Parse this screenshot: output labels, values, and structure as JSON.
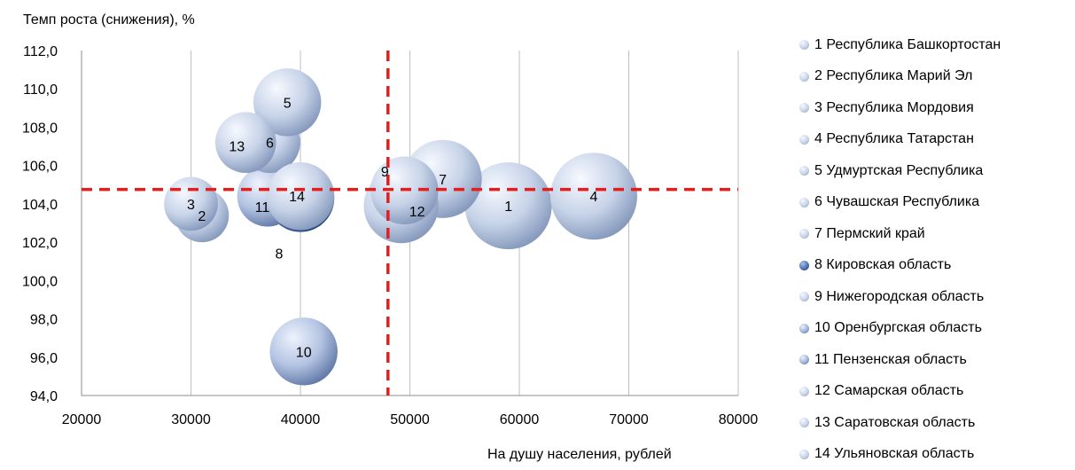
{
  "chart_data": {
    "type": "bubble",
    "ylabel": "Темп роста (снижения), %",
    "xlabel": "На душу населения, рублей",
    "xlim": [
      20000,
      80000
    ],
    "ylim": [
      94.0,
      112.0
    ],
    "x_ticks": [
      "20000",
      "30000",
      "40000",
      "50000",
      "60000",
      "70000",
      "80000"
    ],
    "y_ticks": [
      "94,0",
      "96,0",
      "98,0",
      "100,0",
      "102,0",
      "104,0",
      "106,0",
      "108,0",
      "110,0",
      "112,0"
    ],
    "grid": "vertical",
    "legend_position": "right",
    "reference_lines": {
      "x": 48000,
      "y": 104.75,
      "color": "#e21f1f",
      "style": "dashed"
    },
    "series": [
      {
        "label": "1",
        "name": "1 Республика Башкортостан",
        "x": 59000,
        "y": 103.9,
        "size": 1.0,
        "color": "light"
      },
      {
        "label": "2",
        "name": "2 Республика Марий Эл",
        "x": 31000,
        "y": 103.4,
        "size": 0.62,
        "color": "light"
      },
      {
        "label": "3",
        "name": "3 Республика Мордовия",
        "x": 30000,
        "y": 104.0,
        "size": 0.62,
        "color": "light"
      },
      {
        "label": "4",
        "name": "4 Республика Татарстан",
        "x": 66800,
        "y": 104.4,
        "size": 1.0,
        "color": "light"
      },
      {
        "label": "5",
        "name": "5 Удмуртская Республика",
        "x": 38800,
        "y": 109.3,
        "size": 0.78,
        "color": "light"
      },
      {
        "label": "6",
        "name": "6 Чувашская Республика",
        "x": 37200,
        "y": 107.2,
        "size": 0.7,
        "color": "light"
      },
      {
        "label": "7",
        "name": "7 Пермский край",
        "x": 53000,
        "y": 105.3,
        "size": 0.9,
        "color": "light"
      },
      {
        "label": "8",
        "name": "8 Кировская область",
        "x": 40000,
        "y": 104.3,
        "size": 0.78,
        "color": "dark",
        "label_offset": [
          -24,
          62
        ]
      },
      {
        "label": "9",
        "name": "9 Нижегородская область",
        "x": 49500,
        "y": 104.7,
        "size": 0.78,
        "color": "light",
        "label_offset": [
          -22,
          -22
        ]
      },
      {
        "label": "10",
        "name": "10 Оренбургская область",
        "x": 40300,
        "y": 96.3,
        "size": 0.78,
        "color": "medium"
      },
      {
        "label": "11",
        "name": "11 Пензенская область",
        "x": 37000,
        "y": 104.4,
        "size": 0.7,
        "color": "medium",
        "label_offset": [
          -6,
          12
        ]
      },
      {
        "label": "12",
        "name": "12 Самарская область",
        "x": 49200,
        "y": 103.9,
        "size": 0.86,
        "color": "light",
        "label_offset": [
          18,
          6
        ]
      },
      {
        "label": "13",
        "name": "13 Саратовская область",
        "x": 35000,
        "y": 107.2,
        "size": 0.7,
        "color": "light",
        "label_offset": [
          -10,
          4
        ]
      },
      {
        "label": "14",
        "name": "14 Ульяновская область",
        "x": 40000,
        "y": 104.4,
        "size": 0.78,
        "color": "light",
        "label_offset": [
          -4,
          0
        ]
      }
    ],
    "colors": {
      "light_center": "#f4f8ff",
      "light_edge": "#8fa2c2",
      "medium_center": "#e8eefb",
      "medium_edge": "#6b82ad",
      "dark_center": "#a9bde3",
      "dark_edge": "#2d4f86",
      "grid": "#bfbfbf",
      "ref_line": "#e21f1f"
    },
    "legend_marker_colors": [
      "light",
      "light",
      "light",
      "light",
      "light",
      "light",
      "light",
      "dark",
      "light",
      "medium",
      "medium",
      "light",
      "light",
      "light"
    ]
  }
}
